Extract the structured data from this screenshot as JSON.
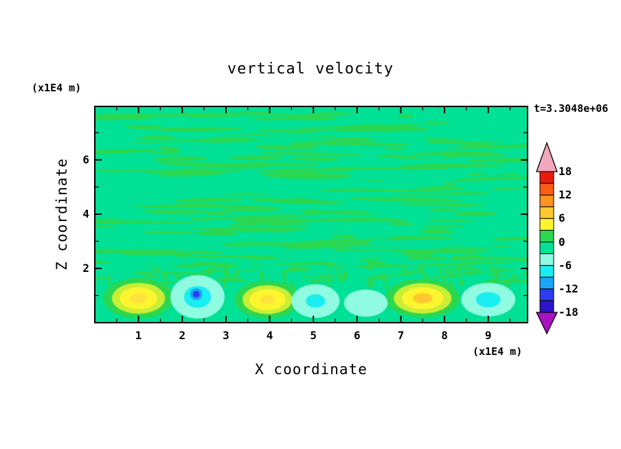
{
  "chart_data": {
    "type": "filled_contour",
    "title": "vertical velocity",
    "annotation": "t=3.3048e+06",
    "xlabel": "X coordinate",
    "ylabel": "Z coordinate",
    "x_unit_label": "(x1E4 m)",
    "y_unit_label": "(x1E4 m)",
    "xlim": [
      0,
      9.9
    ],
    "ylim": [
      0,
      7.97
    ],
    "x_ticks": [
      1,
      2,
      3,
      4,
      5,
      6,
      7,
      8,
      9
    ],
    "y_ticks": [
      2,
      4,
      6
    ],
    "contour_interval": 3,
    "colorbar": {
      "tick_labels": [
        "18",
        "12",
        "6",
        "0",
        "-6",
        "-12",
        "-18"
      ],
      "tick_values": [
        18,
        12,
        6,
        0,
        -6,
        -12,
        -18
      ],
      "segments_top_to_bottom": [
        {
          "range": "15..18",
          "color": "#e81d0e"
        },
        {
          "range": "12..15",
          "color": "#fa5d16"
        },
        {
          "range": "9..12",
          "color": "#ff9323"
        },
        {
          "range": "6..9",
          "color": "#ffc82e"
        },
        {
          "range": "3..6",
          "color": "#fdf62f"
        },
        {
          "range": "0..3",
          "color": "#2bd751"
        },
        {
          "range": "-3..0",
          "color": "#00e195"
        },
        {
          "range": "-6..-3",
          "color": "#8ffbe1"
        },
        {
          "range": "-9..-6",
          "color": "#19eef2"
        },
        {
          "range": "-12..-9",
          "color": "#19a6f8"
        },
        {
          "range": "-15..-12",
          "color": "#2c3cf0"
        },
        {
          "range": "-18..-15",
          "color": "#2d14c8"
        }
      ],
      "arrow_above_color": "#f2a8bc",
      "arrow_below_color": "#a912c0"
    },
    "field": {
      "background_color": "#00e195",
      "streak_color": "#2bd751",
      "texture": {
        "seed": 20481,
        "upper_streaks": {
          "count": 135,
          "zmin": 2.05,
          "zmax": 7.9,
          "len": [
            0.3,
            2.6
          ],
          "th": [
            0.07,
            0.18
          ]
        },
        "upper_gaps": {
          "count": 60,
          "zmin": 2.1,
          "zmax": 7.85,
          "len": [
            0.3,
            1.6
          ],
          "th": [
            0.05,
            0.12
          ]
        },
        "lower_dashes": {
          "count": 50,
          "zmin": 1.45,
          "zmax": 2.25,
          "len": [
            0.15,
            0.7
          ],
          "th": [
            0.05,
            0.1
          ]
        },
        "lower_plumes": {
          "count": 65,
          "zmin": 1.05,
          "zmax": 2.1,
          "w": [
            0.05,
            0.12
          ],
          "h": [
            0.18,
            0.45
          ]
        }
      },
      "updrafts": [
        {
          "x": 1.0,
          "z": 0.9,
          "rx": 0.8,
          "rz": 0.75,
          "rings": [
            [
              1.0,
              "#2bd751"
            ],
            [
              0.76,
              "#c9ee35"
            ],
            [
              0.54,
              "#fdf62f"
            ],
            [
              0.24,
              "#ffe23a"
            ]
          ]
        },
        {
          "x": 3.95,
          "z": 0.85,
          "rx": 0.75,
          "rz": 0.7,
          "rings": [
            [
              1.0,
              "#2bd751"
            ],
            [
              0.76,
              "#c9ee35"
            ],
            [
              0.55,
              "#fdf62f"
            ],
            [
              0.22,
              "#ffe23a"
            ]
          ]
        },
        {
          "x": 7.5,
          "z": 0.9,
          "rx": 0.85,
          "rz": 0.72,
          "rings": [
            [
              1.0,
              "#2bd751"
            ],
            [
              0.78,
              "#c9ee35"
            ],
            [
              0.56,
              "#fdf62f"
            ],
            [
              0.26,
              "#ffc82e"
            ]
          ]
        }
      ],
      "downdrafts": [
        {
          "x": 2.35,
          "z": 0.95,
          "rx": 0.62,
          "rz": 0.8,
          "rings": [
            [
              1.0,
              "#8ffbe1"
            ],
            [
              0.5,
              "#19eef2"
            ]
          ]
        },
        {
          "x": 2.32,
          "z": 1.05,
          "rx": 0.14,
          "rz": 0.22,
          "rings": [
            [
              1.0,
              "#19a6f8"
            ],
            [
              0.55,
              "#2c3cf0"
            ]
          ]
        },
        {
          "x": 5.05,
          "z": 0.8,
          "rx": 0.55,
          "rz": 0.62,
          "rings": [
            [
              1.0,
              "#8ffbe1"
            ],
            [
              0.4,
              "#19eef2"
            ]
          ]
        },
        {
          "x": 6.2,
          "z": 0.72,
          "rx": 0.5,
          "rz": 0.5,
          "rings": [
            [
              1.0,
              "#8ffbe1"
            ]
          ]
        },
        {
          "x": 9.0,
          "z": 0.85,
          "rx": 0.62,
          "rz": 0.62,
          "rings": [
            [
              1.0,
              "#8ffbe1"
            ],
            [
              0.45,
              "#19eef2"
            ]
          ]
        }
      ]
    }
  }
}
